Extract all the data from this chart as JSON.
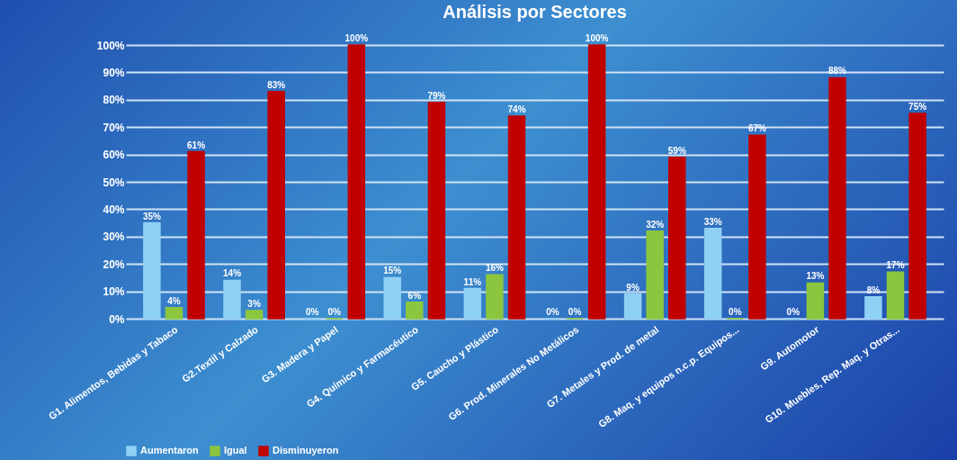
{
  "chart_data": {
    "type": "bar",
    "title": "Análisis por Sectores",
    "categories": [
      "G1. Alimentos, Bebidas y Tabaco",
      "G2.Textil y Calzado",
      "G3. Madera y Papel",
      "G4. Químico y Farmacéutico",
      "G5. Caucho y Plástico",
      "G6. Prod. Minerales No Metálicos",
      "G7. Metales y Prod. de metal",
      "G8. Maq. y equipos n.c.p. Equipos...",
      "G9. Automotor",
      "G10. Muebles, Rep. Maq. y Otras..."
    ],
    "series": [
      {
        "name": "Aumentaron",
        "color": "#8fd0f5",
        "values": [
          35,
          14,
          0,
          15,
          11,
          0,
          9,
          33,
          0,
          8
        ],
        "value_labels": [
          "35%",
          "14%",
          "0%",
          "15%",
          "11%",
          "0%",
          "9%",
          "33%",
          "0%",
          "8%"
        ]
      },
      {
        "name": "Igual",
        "color": "#8cc63f",
        "values": [
          4,
          3,
          0,
          6,
          16,
          0,
          32,
          0,
          13,
          17
        ],
        "value_labels": [
          "4%",
          "3%",
          "0%",
          "6%",
          "16%",
          "0%",
          "32%",
          "0%",
          "13%",
          "17%"
        ]
      },
      {
        "name": "Disminuyeron",
        "color": "#c00000",
        "values": [
          61,
          83,
          100,
          79,
          74,
          100,
          59,
          67,
          88,
          75
        ],
        "value_labels": [
          "61%",
          "83%",
          "100%",
          "79%",
          "74%",
          "100%",
          "59%",
          "67%",
          "88%",
          "75%"
        ]
      }
    ],
    "ylim": [
      0,
      100
    ],
    "yticks": [
      {
        "value": 0,
        "label": "0%"
      },
      {
        "value": 10,
        "label": "10%"
      },
      {
        "value": 20,
        "label": "20%"
      },
      {
        "value": 30,
        "label": "30%"
      },
      {
        "value": 40,
        "label": "40%"
      },
      {
        "value": 50,
        "label": "50%"
      },
      {
        "value": 60,
        "label": "60%"
      },
      {
        "value": 70,
        "label": "70%"
      },
      {
        "value": 80,
        "label": "80%"
      },
      {
        "value": 90,
        "label": "90%"
      },
      {
        "value": 100,
        "label": "100%"
      }
    ],
    "grid": "y",
    "legend": "bottom left"
  }
}
